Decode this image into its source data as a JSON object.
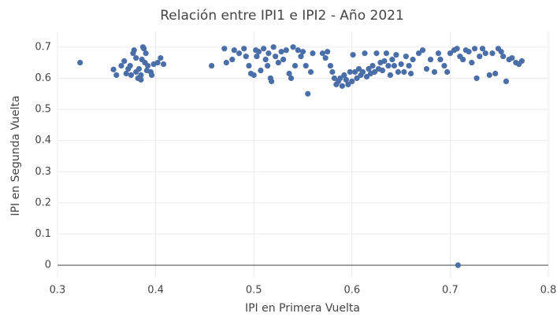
{
  "chart_data": {
    "type": "scatter",
    "title": "Relación entre IPI1 e IPI2 - Año 2021",
    "x_label": "IPI en Primera Vuelta",
    "y_label": "IPI en Segunda Vuelta",
    "color": "#4a6fa8",
    "grid": true,
    "xlim": [
      0.3,
      0.8
    ],
    "ylim": [
      -0.04,
      0.75
    ],
    "xticks": [
      0.3,
      0.4,
      0.5,
      0.6,
      0.7,
      0.8
    ],
    "yticks": [
      0,
      0.1,
      0.2,
      0.3,
      0.4,
      0.5,
      0.6,
      0.7
    ],
    "x": [
      0.323,
      0.357,
      0.36,
      0.365,
      0.37,
      0.372,
      0.375,
      0.377,
      0.378,
      0.38,
      0.38,
      0.382,
      0.383,
      0.385,
      0.386,
      0.387,
      0.388,
      0.389,
      0.39,
      0.392,
      0.395,
      0.396,
      0.398,
      0.402,
      0.405,
      0.408,
      0.385,
      0.368,
      0.374,
      0.391,
      0.457,
      0.47,
      0.472,
      0.478,
      0.48,
      0.485,
      0.49,
      0.492,
      0.495,
      0.497,
      0.5,
      0.502,
      0.503,
      0.505,
      0.507,
      0.51,
      0.512,
      0.514,
      0.515,
      0.517,
      0.518,
      0.52,
      0.522,
      0.525,
      0.528,
      0.53,
      0.533,
      0.536,
      0.538,
      0.54,
      0.542,
      0.545,
      0.548,
      0.55,
      0.553,
      0.555,
      0.558,
      0.56,
      0.57,
      0.573,
      0.575,
      0.578,
      0.58,
      0.582,
      0.584,
      0.586,
      0.588,
      0.59,
      0.592,
      0.594,
      0.596,
      0.598,
      0.6,
      0.601,
      0.603,
      0.605,
      0.607,
      0.609,
      0.611,
      0.613,
      0.615,
      0.617,
      0.619,
      0.621,
      0.623,
      0.625,
      0.627,
      0.629,
      0.631,
      0.633,
      0.635,
      0.637,
      0.639,
      0.641,
      0.643,
      0.645,
      0.647,
      0.65,
      0.653,
      0.655,
      0.658,
      0.66,
      0.662,
      0.668,
      0.672,
      0.676,
      0.68,
      0.684,
      0.688,
      0.69,
      0.694,
      0.697,
      0.7,
      0.704,
      0.707,
      0.708,
      0.71,
      0.713,
      0.716,
      0.719,
      0.722,
      0.725,
      0.727,
      0.73,
      0.733,
      0.736,
      0.74,
      0.743,
      0.746,
      0.749,
      0.752,
      0.754,
      0.757,
      0.76,
      0.763,
      0.767,
      0.77,
      0.773
    ],
    "y": [
      0.65,
      0.628,
      0.61,
      0.64,
      0.615,
      0.63,
      0.61,
      0.68,
      0.69,
      0.62,
      0.665,
      0.6,
      0.63,
      0.61,
      0.66,
      0.7,
      0.695,
      0.65,
      0.68,
      0.64,
      0.62,
      0.61,
      0.645,
      0.65,
      0.665,
      0.645,
      0.595,
      0.655,
      0.64,
      0.625,
      0.64,
      0.695,
      0.65,
      0.66,
      0.69,
      0.68,
      0.695,
      0.67,
      0.64,
      0.615,
      0.61,
      0.69,
      0.67,
      0.685,
      0.625,
      0.695,
      0.66,
      0.64,
      0.68,
      0.6,
      0.59,
      0.7,
      0.67,
      0.65,
      0.685,
      0.66,
      0.69,
      0.615,
      0.6,
      0.7,
      0.64,
      0.69,
      0.67,
      0.685,
      0.64,
      0.55,
      0.62,
      0.68,
      0.68,
      0.665,
      0.685,
      0.64,
      0.62,
      0.6,
      0.58,
      0.59,
      0.6,
      0.575,
      0.61,
      0.595,
      0.58,
      0.62,
      0.59,
      0.675,
      0.62,
      0.6,
      0.63,
      0.61,
      0.62,
      0.68,
      0.605,
      0.63,
      0.615,
      0.64,
      0.62,
      0.68,
      0.63,
      0.65,
      0.625,
      0.655,
      0.68,
      0.64,
      0.61,
      0.66,
      0.64,
      0.675,
      0.62,
      0.645,
      0.62,
      0.67,
      0.64,
      0.615,
      0.66,
      0.68,
      0.69,
      0.63,
      0.66,
      0.62,
      0.68,
      0.66,
      0.64,
      0.62,
      0.68,
      0.69,
      0.695,
      0,
      0.67,
      0.66,
      0.69,
      0.685,
      0.65,
      0.695,
      0.6,
      0.67,
      0.695,
      0.68,
      0.61,
      0.68,
      0.615,
      0.695,
      0.685,
      0.67,
      0.59,
      0.66,
      0.665,
      0.65,
      0.645,
      0.655
    ]
  }
}
